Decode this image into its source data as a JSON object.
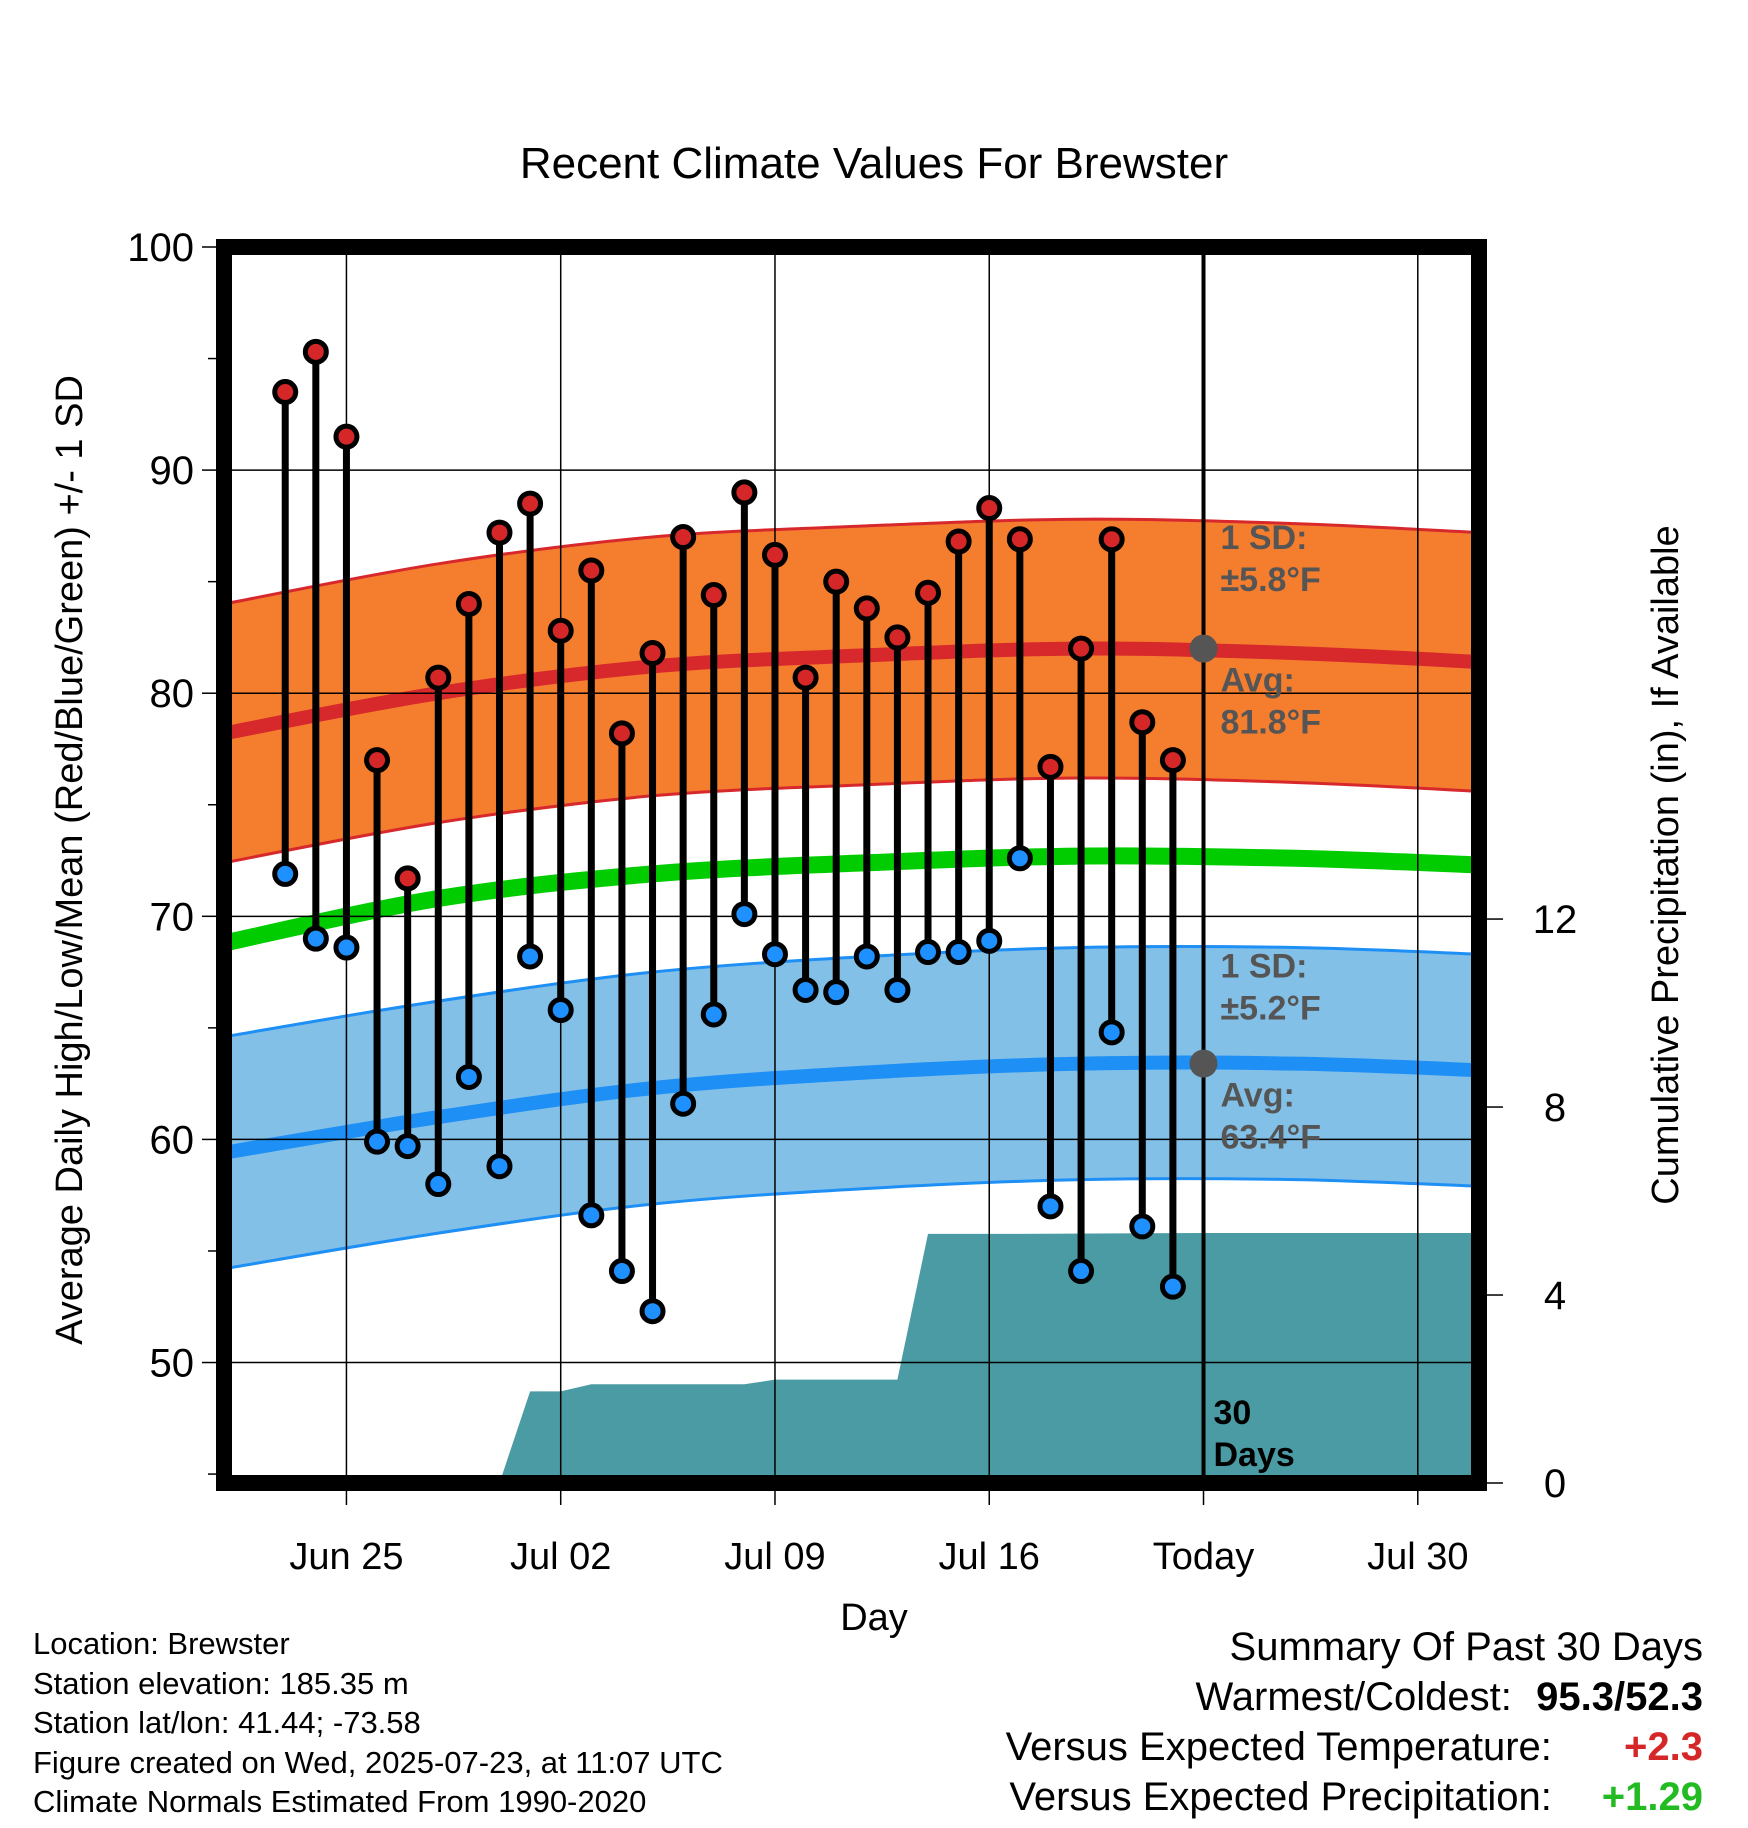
{
  "colors": {
    "high_marker": "#d62728",
    "low_marker": "#1e90ff",
    "high_band": "#f57d2e",
    "high_avg_line": "#d7282c",
    "low_band": "#82c0e8",
    "low_avg_line": "#1e8ff5",
    "mean_line": "#00cc00",
    "precip_fill": "#4a9ba3",
    "annotation_text": "#555555",
    "today_dot": "#555555",
    "temp_anomaly": "#d62728",
    "precip_anomaly": "#22bb22"
  },
  "chart_data": {
    "type": "line",
    "title": "Recent Climate Values For Brewster",
    "xlabel": "Day",
    "ylabel": "Average Daily High/Low/Mean (Red/Blue/Green) +/- 1 SD",
    "y2label": "Cumulative Precipitation (in), If Available",
    "x_tick_labels": [
      "Jun 25",
      "Jul 02",
      "Jul 09",
      "Jul 16",
      "Today",
      "Jul 30"
    ],
    "x_ticks": [
      "2025-06-25",
      "2025-07-02",
      "2025-07-09",
      "2025-07-16",
      "2025-07-23",
      "2025-07-30"
    ],
    "xlim": [
      "2025-06-21",
      "2025-08-01"
    ],
    "ylim": [
      44.6,
      100
    ],
    "yticks": [
      50,
      60,
      70,
      80,
      90,
      100
    ],
    "y2lim": [
      0,
      26.3
    ],
    "y2ticks": [
      0,
      4,
      8,
      12
    ],
    "grid": true,
    "today": "2025-07-23",
    "dates": [
      "2025-06-23",
      "2025-06-24",
      "2025-06-25",
      "2025-06-26",
      "2025-06-27",
      "2025-06-28",
      "2025-06-29",
      "2025-06-30",
      "2025-07-01",
      "2025-07-02",
      "2025-07-03",
      "2025-07-04",
      "2025-07-05",
      "2025-07-06",
      "2025-07-07",
      "2025-07-08",
      "2025-07-09",
      "2025-07-10",
      "2025-07-11",
      "2025-07-12",
      "2025-07-13",
      "2025-07-14",
      "2025-07-15",
      "2025-07-16",
      "2025-07-17",
      "2025-07-18",
      "2025-07-19",
      "2025-07-20",
      "2025-07-21",
      "2025-07-22"
    ],
    "daily_high": [
      93.5,
      95.3,
      91.5,
      77.0,
      71.7,
      80.7,
      84.0,
      87.2,
      88.5,
      82.8,
      85.5,
      78.2,
      81.8,
      87.0,
      84.4,
      89.0,
      86.2,
      80.7,
      85.0,
      83.8,
      82.5,
      84.5,
      86.8,
      88.3,
      86.9,
      76.7,
      82.0,
      86.9,
      78.7,
      77.0
    ],
    "daily_low": [
      71.9,
      69.0,
      68.6,
      59.9,
      59.7,
      58.0,
      62.8,
      58.8,
      68.2,
      65.8,
      56.6,
      54.1,
      52.3,
      61.6,
      65.6,
      70.1,
      68.3,
      66.7,
      66.6,
      68.2,
      66.7,
      68.4,
      68.4,
      68.9,
      72.6,
      57.0,
      54.1,
      64.8,
      56.1,
      53.4
    ],
    "normal_dates": [
      "2025-06-21",
      "2025-06-28",
      "2025-07-05",
      "2025-07-12",
      "2025-07-19",
      "2025-07-26",
      "2025-08-01"
    ],
    "normal_high": [
      78.2,
      80.0,
      81.2,
      81.7,
      82.0,
      81.8,
      81.4
    ],
    "normal_high_sd": 5.8,
    "normal_low": [
      59.4,
      61.0,
      62.3,
      63.0,
      63.4,
      63.4,
      63.1
    ],
    "normal_low_sd": 5.2,
    "normal_mean": [
      68.8,
      70.8,
      71.9,
      72.4,
      72.7,
      72.6,
      72.3
    ],
    "cumulative_precip": {
      "dates": [
        "2025-06-21",
        "2025-06-30",
        "2025-07-01",
        "2025-07-02",
        "2025-07-03",
        "2025-07-08",
        "2025-07-09",
        "2025-07-12",
        "2025-07-13",
        "2025-07-14",
        "2025-07-17",
        "2025-07-23",
        "2025-08-01"
      ],
      "values": [
        0,
        0,
        1.95,
        1.95,
        2.1,
        2.1,
        2.2,
        2.2,
        2.2,
        5.3,
        5.3,
        5.32,
        5.32
      ]
    },
    "annotations": {
      "high_sd": [
        "1 SD:",
        "±5.8°F"
      ],
      "high_avg": [
        "Avg:",
        "81.8°F"
      ],
      "low_sd": [
        "1 SD:",
        "±5.2°F"
      ],
      "low_avg": [
        "Avg:",
        "63.4°F"
      ],
      "window": [
        "30",
        "Days"
      ]
    }
  },
  "location": {
    "name_line": "Location: Brewster",
    "elevation_line": "Station elevation: 185.35 m",
    "latlon_line": "Station lat/lon: 41.44; -73.58",
    "created_line": "Figure created on Wed, 2025-07-23, at 11:07 UTC",
    "normals_line": "Climate Normals Estimated From 1990-2020"
  },
  "summary": {
    "title": "Summary Of Past 30 Days",
    "warm_cold_label": "Warmest/Coldest:",
    "warm_cold_value": "95.3/52.3",
    "temp_label": "Versus Expected Temperature:",
    "temp_value": "+2.3",
    "precip_label": "Versus Expected Precipitation:",
    "precip_value": "+1.29"
  }
}
